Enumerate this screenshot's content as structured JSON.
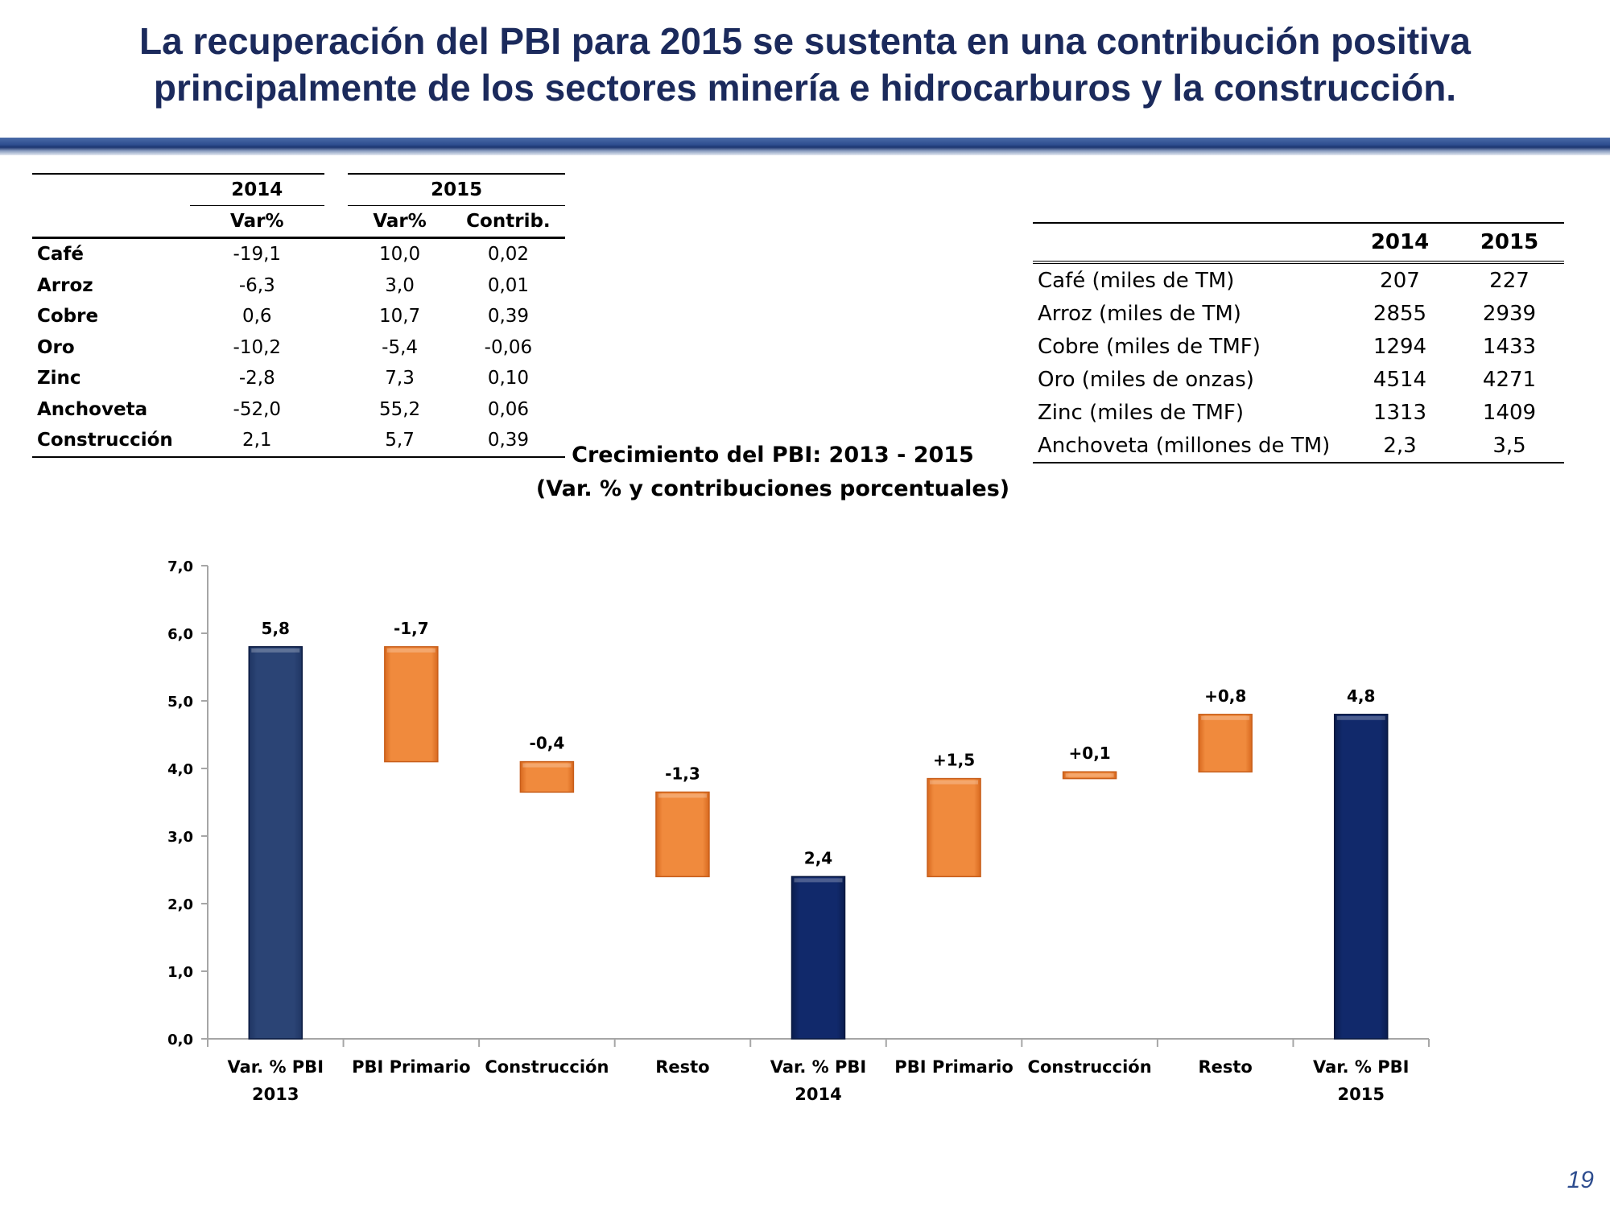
{
  "slide": {
    "title_line1": "La recuperación del PBI para 2015 se sustenta en una contribución positiva",
    "title_line2": "principalmente de los sectores minería e hidrocarburos y la construcción.",
    "page_number": "19"
  },
  "left_table": {
    "year_2014": "2014",
    "year_2015": "2015",
    "sub_var_2014": "Var%",
    "sub_var_2015": "Var%",
    "sub_contrib": "Contrib.",
    "rows": [
      {
        "label": "Café",
        "var2014": "-19,1",
        "var2015": "10,0",
        "contrib": "0,02"
      },
      {
        "label": "Arroz",
        "var2014": "-6,3",
        "var2015": "3,0",
        "contrib": "0,01"
      },
      {
        "label": "Cobre",
        "var2014": "0,6",
        "var2015": "10,7",
        "contrib": "0,39"
      },
      {
        "label": "Oro",
        "var2014": "-10,2",
        "var2015": "-5,4",
        "contrib": "-0,06"
      },
      {
        "label": "Zinc",
        "var2014": "-2,8",
        "var2015": "7,3",
        "contrib": "0,10"
      },
      {
        "label": "Anchoveta",
        "var2014": "-52,0",
        "var2015": "55,2",
        "contrib": "0,06"
      },
      {
        "label": "Construcción",
        "var2014": "2,1",
        "var2015": "5,7",
        "contrib": "0,39"
      }
    ]
  },
  "right_table": {
    "col_2014": "2014",
    "col_2015": "2015",
    "rows": [
      {
        "label": "Café (miles de TM)",
        "v2014": "207",
        "v2015": "227"
      },
      {
        "label": "Arroz (miles de TM)",
        "v2014": "2855",
        "v2015": "2939"
      },
      {
        "label": "Cobre (miles de TMF)",
        "v2014": "1294",
        "v2015": "1433"
      },
      {
        "label": "Oro (miles de onzas)",
        "v2014": "4514",
        "v2015": "4271"
      },
      {
        "label": "Zinc (miles de TMF)",
        "v2014": "1313",
        "v2015": "1409"
      },
      {
        "label": "Anchoveta (millones de TM)",
        "v2014": "2,3",
        "v2015": "3,5"
      }
    ]
  },
  "chart_data": {
    "type": "bar",
    "subtype": "waterfall",
    "title": "Crecimiento del PBI: 2013 - 2015",
    "subtitle": "(Var. % y contribuciones porcentuales)",
    "ylim": [
      0,
      7
    ],
    "yticks": [
      "0,0",
      "1,0",
      "2,0",
      "3,0",
      "4,0",
      "5,0",
      "6,0",
      "7,0"
    ],
    "categories": [
      [
        "Var. % PBI",
        "2013"
      ],
      [
        "PBI Primario"
      ],
      [
        "Construcción"
      ],
      [
        "Resto"
      ],
      [
        "Var. % PBI",
        "2014"
      ],
      [
        "PBI Primario"
      ],
      [
        "Construcción"
      ],
      [
        "Resto"
      ],
      [
        "Var. % PBI",
        "2015"
      ]
    ],
    "bars": [
      {
        "kind": "total",
        "start": 0,
        "end": 5.8,
        "label": "5,8"
      },
      {
        "kind": "delta",
        "start": 5.8,
        "end": 4.1,
        "label": "-1,7"
      },
      {
        "kind": "delta",
        "start": 4.1,
        "end": 3.65,
        "label": "-0,4"
      },
      {
        "kind": "delta",
        "start": 3.65,
        "end": 2.4,
        "label": "-1,3"
      },
      {
        "kind": "total",
        "start": 0,
        "end": 2.4,
        "label": "2,4"
      },
      {
        "kind": "delta",
        "start": 2.4,
        "end": 3.85,
        "label": "+1,5"
      },
      {
        "kind": "delta",
        "start": 3.85,
        "end": 3.95,
        "label": "+0,1"
      },
      {
        "kind": "delta",
        "start": 3.95,
        "end": 4.8,
        "label": "+0,8"
      },
      {
        "kind": "total",
        "start": 0,
        "end": 4.8,
        "label": "4,8"
      }
    ],
    "colors": {
      "total_first": "#2a4272",
      "total": "#0e2766",
      "total_edge": "#08183f",
      "delta": "#ee7f33",
      "delta_edge": "#c85e1a",
      "axis": "#a6a6a6"
    }
  }
}
